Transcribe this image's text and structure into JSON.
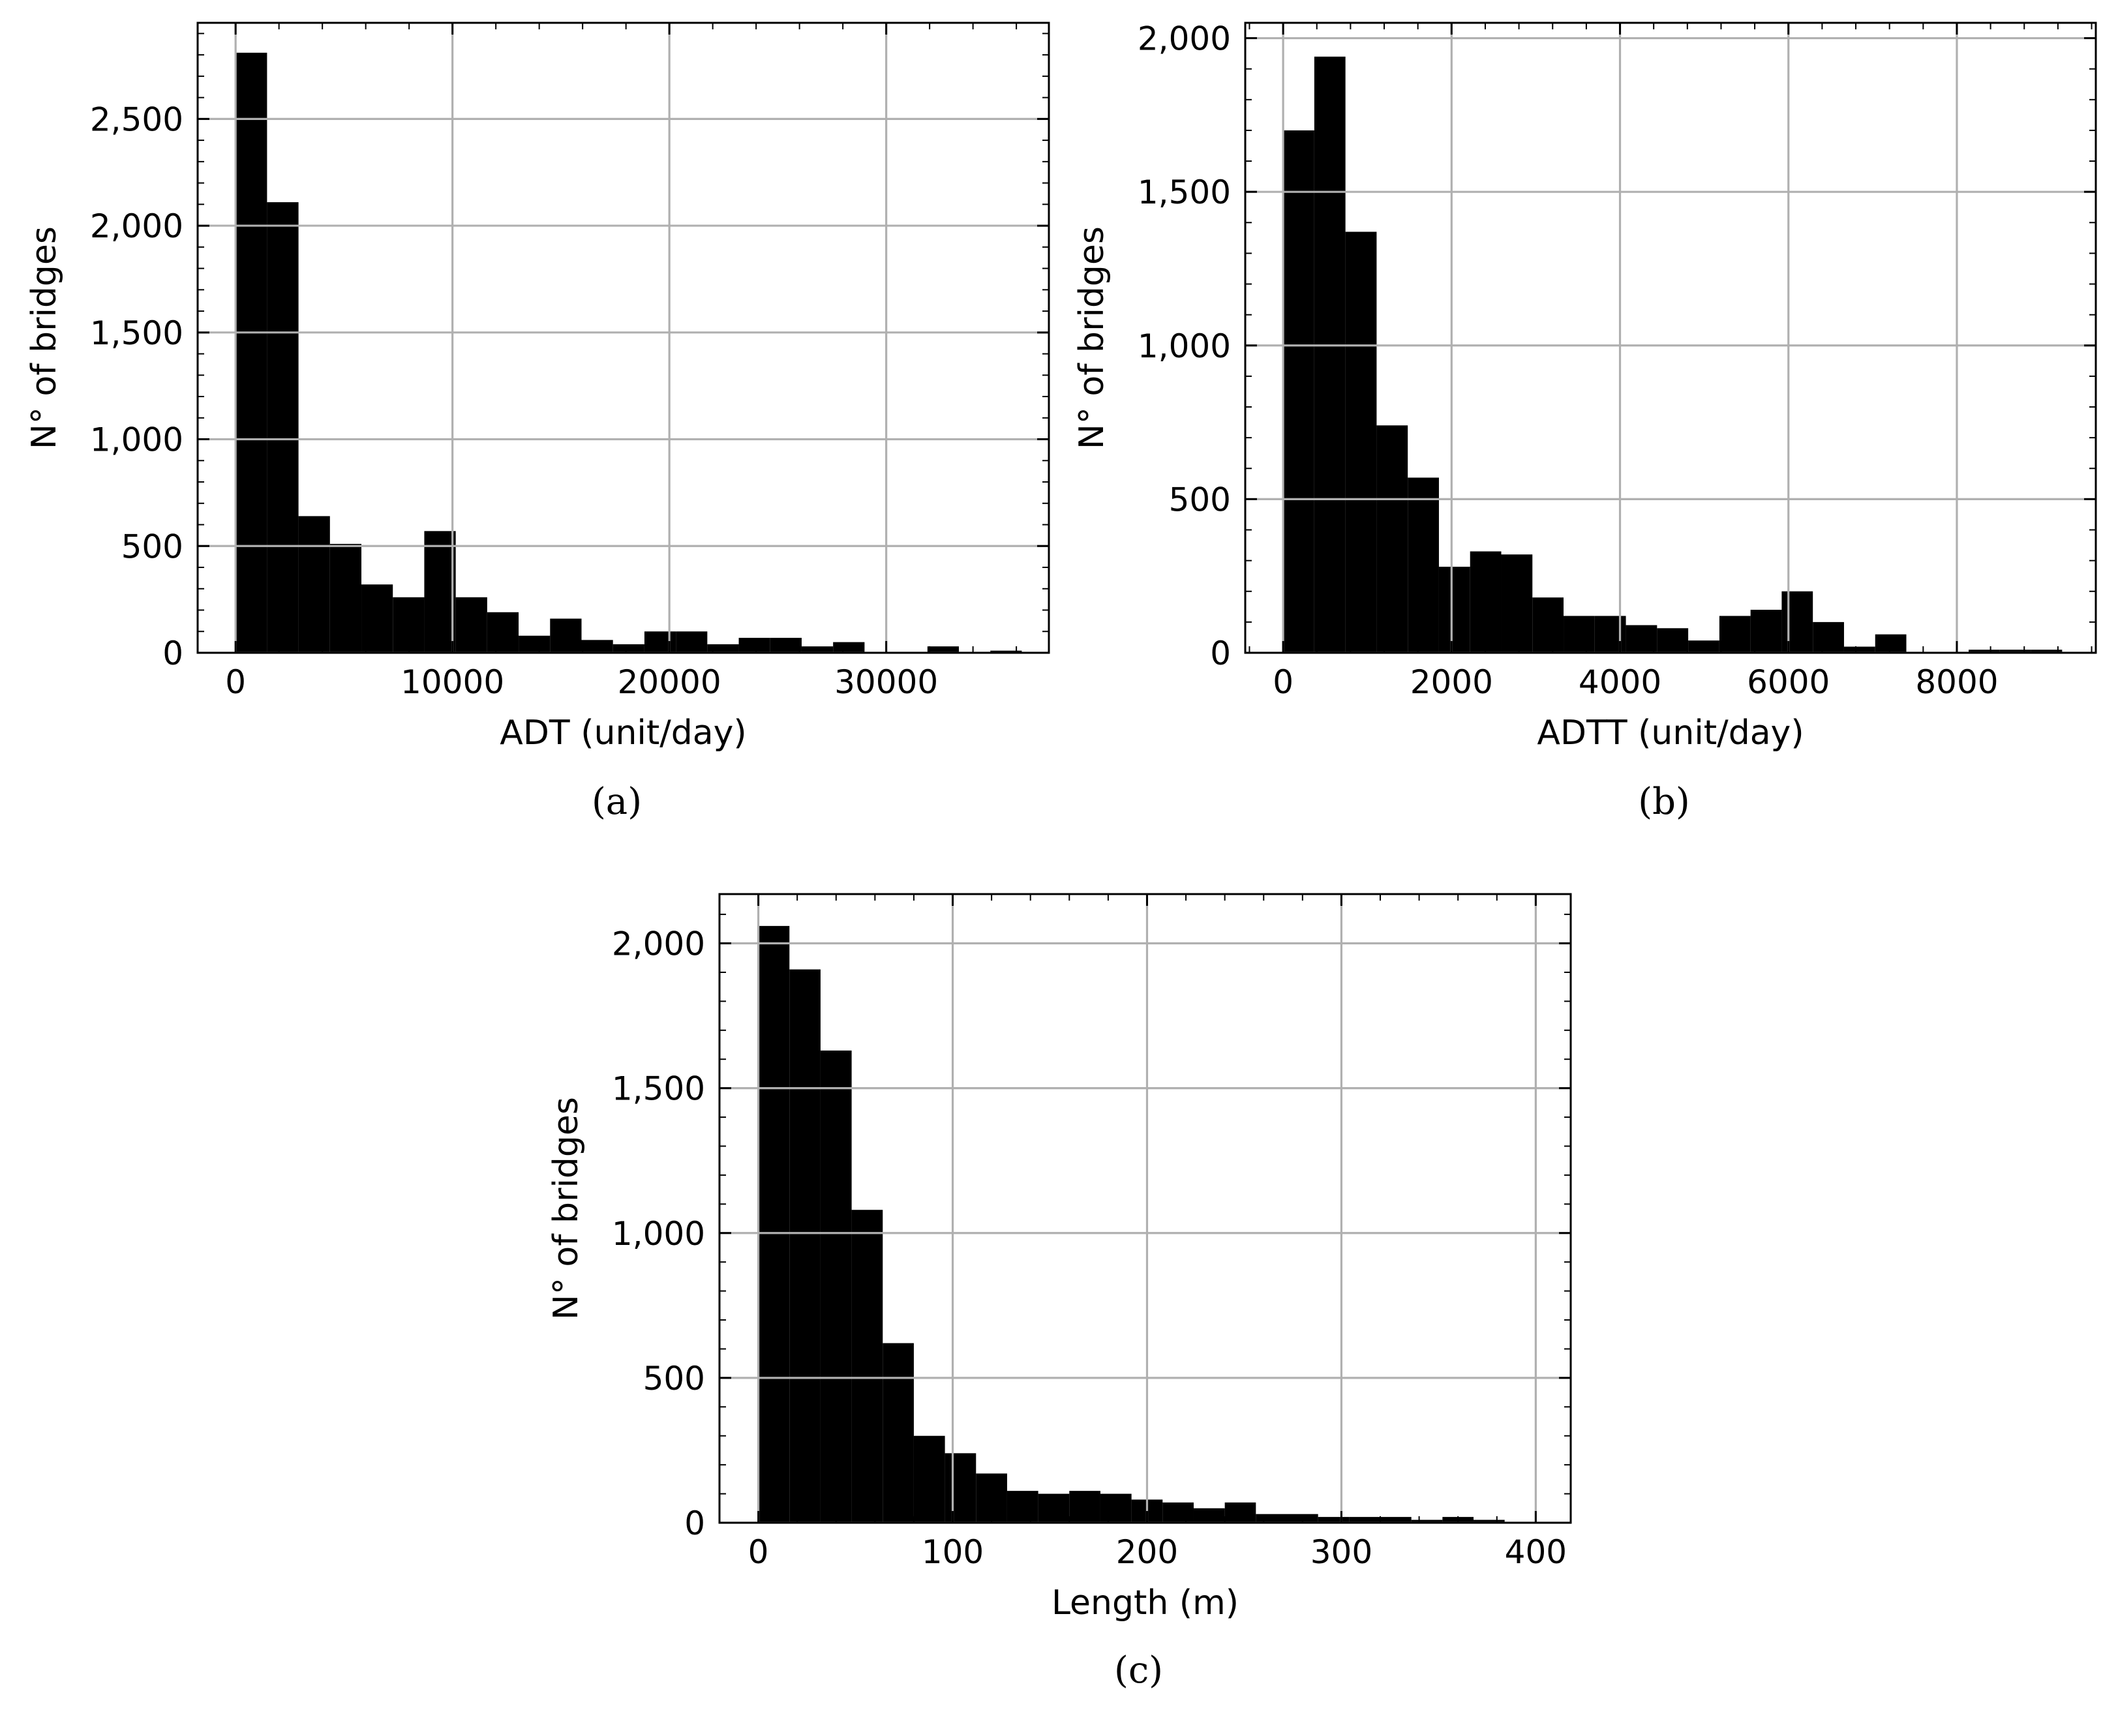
{
  "chart_data": [
    {
      "type": "bar",
      "panel_label": "(a)",
      "xlabel": "ADT (unit/day)",
      "ylabel": "N° of bridges",
      "xlim": [
        -1750,
        37500
      ],
      "ylim": [
        0,
        2950
      ],
      "xticks": [
        0,
        10000,
        20000,
        30000
      ],
      "xtick_labels": [
        "0",
        "10000",
        "20000",
        "30000"
      ],
      "yticks": [
        0,
        500,
        1000,
        1500,
        2000,
        2500
      ],
      "ytick_labels": [
        "0",
        "500",
        "1,000",
        "1,500",
        "2,000",
        "2,500"
      ],
      "grid": true,
      "bin_edges": [
        0,
        1450,
        2900,
        4350,
        5800,
        7250,
        8700,
        10150,
        11600,
        13050,
        14500,
        15950,
        17400,
        18850,
        20300,
        21750,
        23200,
        24650,
        26100,
        27550,
        29000,
        30450,
        31900,
        33350,
        34800,
        36250
      ],
      "values": [
        2810,
        2110,
        640,
        510,
        320,
        260,
        570,
        260,
        190,
        80,
        160,
        60,
        40,
        100,
        100,
        40,
        70,
        70,
        30,
        50,
        0,
        0,
        30,
        0,
        10
      ]
    },
    {
      "type": "bar",
      "panel_label": "(b)",
      "xlabel": "ADTT (unit/day)",
      "ylabel": "N° of bridges",
      "xlim": [
        -450,
        9650
      ],
      "ylim": [
        0,
        2050
      ],
      "xticks": [
        0,
        2000,
        4000,
        6000,
        8000
      ],
      "xtick_labels": [
        "0",
        "2000",
        "4000",
        "6000",
        "8000"
      ],
      "yticks": [
        0,
        500,
        1000,
        1500,
        2000
      ],
      "ytick_labels": [
        "0",
        "500",
        "1,000",
        "1,500",
        "2,000"
      ],
      "grid": true,
      "bin_edges": [
        0,
        370,
        740,
        1110,
        1480,
        1850,
        2220,
        2590,
        2960,
        3330,
        3700,
        4070,
        4440,
        4810,
        5180,
        5550,
        5920,
        6290,
        6660,
        7030,
        7400,
        7770,
        8140,
        8510,
        8880,
        9250
      ],
      "values": [
        1700,
        1940,
        1370,
        740,
        570,
        280,
        330,
        320,
        180,
        120,
        120,
        90,
        80,
        40,
        120,
        140,
        200,
        100,
        20,
        60,
        0,
        0,
        10,
        10,
        10
      ]
    },
    {
      "type": "bar",
      "panel_label": "(c)",
      "xlabel": "Length (m)",
      "ylabel": "N° of bridges",
      "xlim": [
        -20,
        418
      ],
      "ylim": [
        0,
        2170
      ],
      "xticks": [
        0,
        100,
        200,
        300,
        400
      ],
      "xtick_labels": [
        "0",
        "100",
        "200",
        "300",
        "400"
      ],
      "yticks": [
        0,
        500,
        1000,
        1500,
        2000
      ],
      "ytick_labels": [
        "0",
        "500",
        "1,000",
        "1,500",
        "2,000"
      ],
      "grid": true,
      "bin_edges": [
        0,
        16,
        32,
        48,
        64,
        80,
        96,
        112,
        128,
        144,
        160,
        176,
        192,
        208,
        224,
        240,
        256,
        272,
        288,
        304,
        320,
        336,
        352,
        368,
        384
      ],
      "values": [
        2060,
        1910,
        1630,
        1080,
        620,
        300,
        240,
        170,
        110,
        100,
        110,
        100,
        80,
        70,
        50,
        70,
        30,
        30,
        20,
        20,
        20,
        10,
        20,
        10
      ]
    }
  ]
}
